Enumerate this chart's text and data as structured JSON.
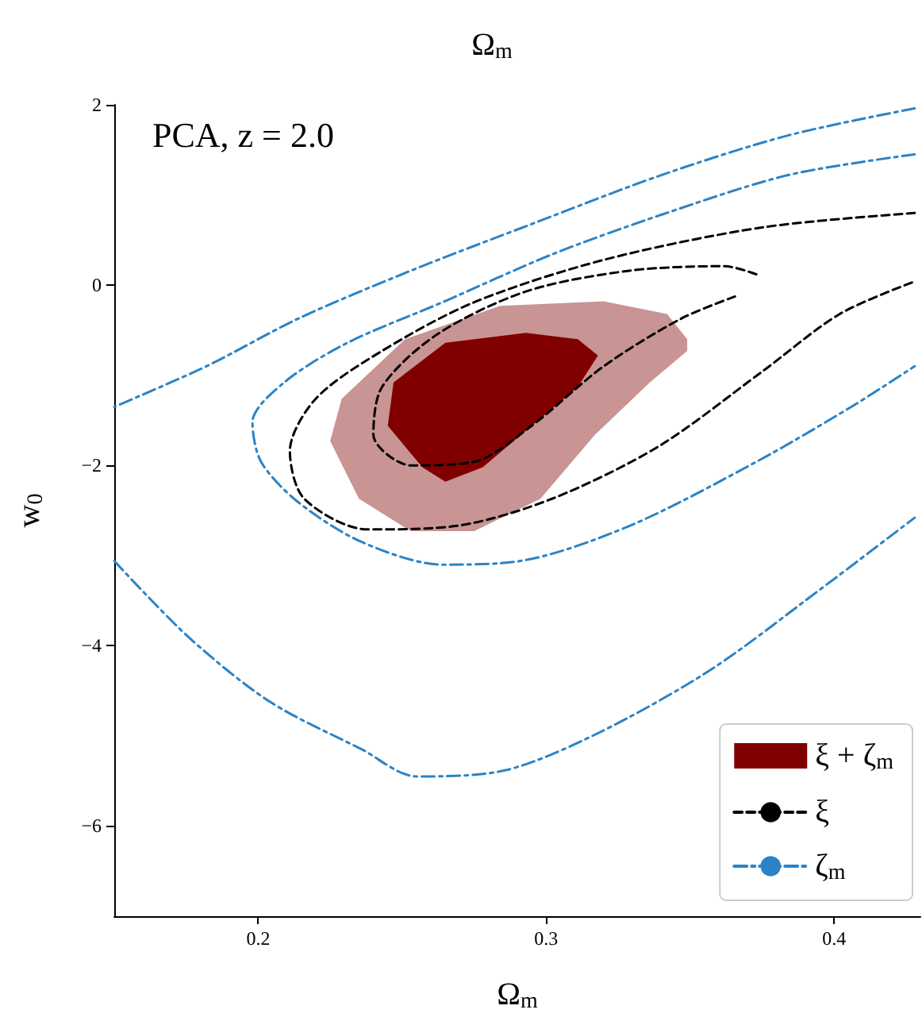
{
  "chart_data": {
    "type": "line",
    "title": "Ω$_{m}$",
    "xlabel": "Ω$_{m}$",
    "ylabel": "w$_{0}$",
    "annotations": [
      "PCA, z = 2.0"
    ],
    "xlim": [
      0.15,
      0.43
    ],
    "xticks": [
      0.2,
      0.3,
      0.4
    ],
    "ylim": [
      -7,
      2
    ],
    "yticks": [
      -6,
      -4,
      -2,
      0,
      2
    ],
    "grid": false,
    "legend": "bottom right",
    "marker": "none",
    "series": [
      {
        "type": "area",
        "color": "#c99494",
        "x": [
          0.349,
          0.342,
          0.32,
          0.284,
          0.251,
          0.229,
          0.225,
          0.235,
          0.253,
          0.275,
          0.298,
          0.317,
          0.336,
          0.349
        ],
        "values": [
          -0.6,
          -0.32,
          -0.18,
          -0.23,
          -0.6,
          -1.26,
          -1.73,
          -2.37,
          -2.73,
          -2.73,
          -2.37,
          -1.66,
          -1.08,
          -0.73
        ]
      },
      {
        "type": "area",
        "name": "ξ + ζ$_{m}$",
        "color": "#800000",
        "x": [
          0.318,
          0.311,
          0.293,
          0.265,
          0.247,
          0.245,
          0.257,
          0.265,
          0.278,
          0.295,
          0.311
        ],
        "values": [
          -0.78,
          -0.6,
          -0.53,
          -0.64,
          -1.08,
          -1.56,
          -2.02,
          -2.18,
          -2.02,
          -1.56,
          -1.13
        ]
      },
      {
        "name": "ξ",
        "color": "#000000",
        "line_style": "dashed",
        "x": [
          0.428,
          0.375,
          0.32,
          0.275,
          0.243,
          0.22,
          0.211,
          0.216,
          0.238,
          0.269,
          0.302,
          0.339,
          0.375,
          0.402,
          0.428
        ],
        "values": [
          0.8,
          0.64,
          0.28,
          -0.19,
          -0.73,
          -1.26,
          -1.84,
          -2.37,
          -2.71,
          -2.67,
          -2.37,
          -1.79,
          -0.96,
          -0.32,
          0.04
        ]
      },
      {
        "color": "#000000",
        "line_style": "dashed",
        "x": [
          0.373,
          0.362,
          0.329,
          0.293,
          0.262,
          0.243,
          0.24,
          0.253,
          0.275,
          0.295,
          0.32,
          0.347,
          0.367
        ],
        "values": [
          0.12,
          0.21,
          0.16,
          -0.07,
          -0.55,
          -1.13,
          -1.66,
          -2.0,
          -1.96,
          -1.56,
          -0.9,
          -0.37,
          -0.11
        ]
      },
      {
        "name": "ζ$_{m}$",
        "color": "#2b83c6",
        "line_style": "dashdot",
        "x": [
          0.428,
          0.384,
          0.34,
          0.302,
          0.264,
          0.231,
          0.209,
          0.198,
          0.201,
          0.214,
          0.236,
          0.264,
          0.291,
          0.329,
          0.373,
          0.406,
          0.428
        ],
        "values": [
          1.45,
          1.22,
          0.78,
          0.34,
          -0.19,
          -0.64,
          -1.08,
          -1.52,
          -1.96,
          -2.41,
          -2.85,
          -3.1,
          -3.06,
          -2.67,
          -1.96,
          -1.35,
          -0.9
        ]
      },
      {
        "color": "#2b83c6",
        "line_style": "dashdot",
        "x": [
          0.428,
          0.384,
          0.34,
          0.296,
          0.253,
          0.214,
          0.182,
          0.15
        ],
        "values": [
          1.96,
          1.66,
          1.22,
          0.69,
          0.16,
          -0.37,
          -0.9,
          -1.35
        ]
      },
      {
        "color": "#2b83c6",
        "line_style": "dashdot",
        "x": [
          0.15,
          0.176,
          0.204,
          0.236,
          0.255,
          0.286,
          0.318,
          0.357,
          0.395,
          0.428
        ],
        "values": [
          -3.06,
          -3.91,
          -4.62,
          -5.15,
          -5.45,
          -5.38,
          -4.97,
          -4.27,
          -3.38,
          -2.58
        ]
      }
    ]
  }
}
